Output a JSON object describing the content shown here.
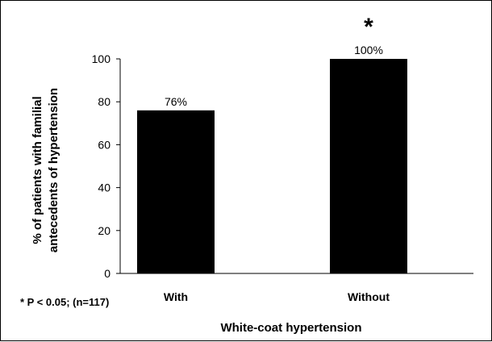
{
  "chart_data": {
    "type": "bar",
    "categories": [
      "With",
      "Without"
    ],
    "values": [
      76,
      100
    ],
    "data_labels": [
      "76%",
      "100%"
    ],
    "title": "",
    "xlabel": "White-coat hypertension",
    "ylabel_lines": [
      "% of patients with familial",
      "antecedents of hypertension"
    ],
    "ylim": [
      0,
      100
    ],
    "yticks": [
      "0",
      "20",
      "40",
      "60",
      "80",
      "100"
    ],
    "grid": false,
    "legend": "none",
    "bar_color": "#000000",
    "significance_marker": {
      "category": "Without",
      "symbol": "*"
    },
    "footnote": "* P < 0.05; (n=117)"
  }
}
